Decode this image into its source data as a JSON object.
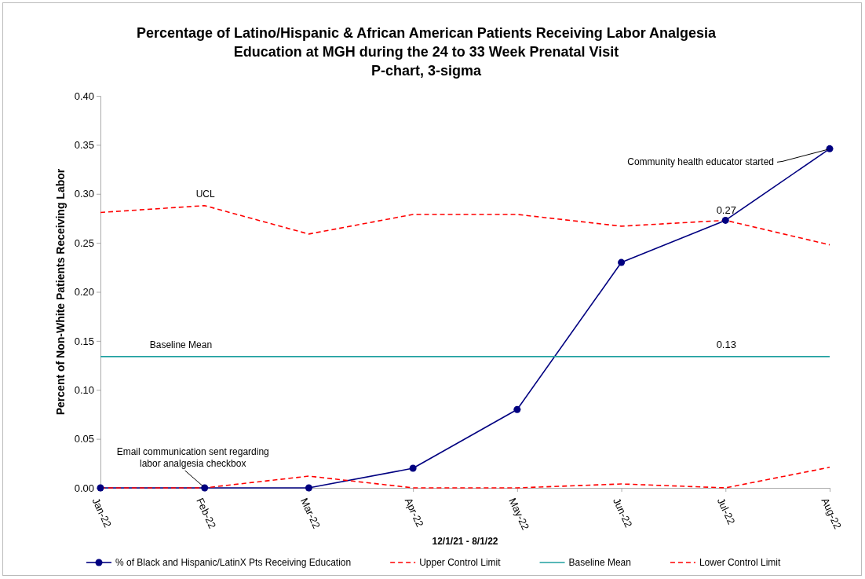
{
  "chart_data": {
    "type": "line",
    "title": "Percentage of Latino/Hispanic & African American Patients Receiving Labor Analgesia Education at MGH during the 24 to 33 Week Prenatal Visit",
    "subtitle": "P-chart, 3-sigma",
    "xlabel": "12/1/21 - 8/1/22",
    "ylabel": "Percent of Non-White Patients Receiving Labor",
    "categories": [
      "Jan-22",
      "Feb-22",
      "Mar-22",
      "Apr-22",
      "May-22",
      "Jun-22",
      "Jul-22",
      "Aug-22"
    ],
    "series": [
      {
        "name": "% of Black and Hispanic/LatinX Pts Receiving Education",
        "color": "#000080",
        "marker": "circle",
        "line_style": "solid",
        "values": [
          0,
          0,
          0,
          0.02,
          0.08,
          0.23,
          0.273,
          0.346
        ],
        "value_labels": [
          null,
          null,
          null,
          null,
          null,
          null,
          "0.27",
          null
        ]
      },
      {
        "name": "Upper Control Limit",
        "color": "#ff0000",
        "marker": "none",
        "line_style": "dashed",
        "values": [
          0.281,
          0.288,
          0.259,
          0.279,
          0.279,
          0.267,
          0.273,
          0.248
        ]
      },
      {
        "name": "Baseline Mean",
        "color": "#20a0a0",
        "marker": "none",
        "line_style": "solid",
        "values": [
          0.134,
          0.134,
          0.134,
          0.134,
          0.134,
          0.134,
          0.134,
          0.134
        ]
      },
      {
        "name": "Lower Control Limit",
        "color": "#ff0000",
        "marker": "none",
        "line_style": "dashed",
        "values": [
          0,
          0,
          0.012,
          0,
          0,
          0.004,
          0,
          0.021
        ]
      }
    ],
    "ylim": [
      0,
      0.4
    ],
    "yticks": [
      {
        "value": 0,
        "label": "0.00"
      },
      {
        "value": 0.05,
        "label": "0.05"
      },
      {
        "value": 0.1,
        "label": "0.10"
      },
      {
        "value": 0.15,
        "label": "0.15"
      },
      {
        "value": 0.2,
        "label": "0.20"
      },
      {
        "value": 0.25,
        "label": "0.25"
      },
      {
        "value": 0.3,
        "label": "0.30"
      },
      {
        "value": 0.35,
        "label": "0.35"
      },
      {
        "value": 0.4,
        "label": "0.40"
      }
    ],
    "grid": false,
    "legend": "bottom",
    "annotations": [
      {
        "text": "UCL",
        "x": "Feb-22",
        "y": 0.288
      },
      {
        "text": "Baseline Mean",
        "x": "Feb-22",
        "y": 0.134
      },
      {
        "text": "0.13",
        "x": "Jul-22",
        "y": 0.134
      },
      {
        "text": "Email communication sent regarding labor analgesia checkbox",
        "x": "Feb-22",
        "y": 0
      },
      {
        "text": "Community health educator started",
        "x": "Aug-22",
        "y": 0.346
      }
    ]
  }
}
